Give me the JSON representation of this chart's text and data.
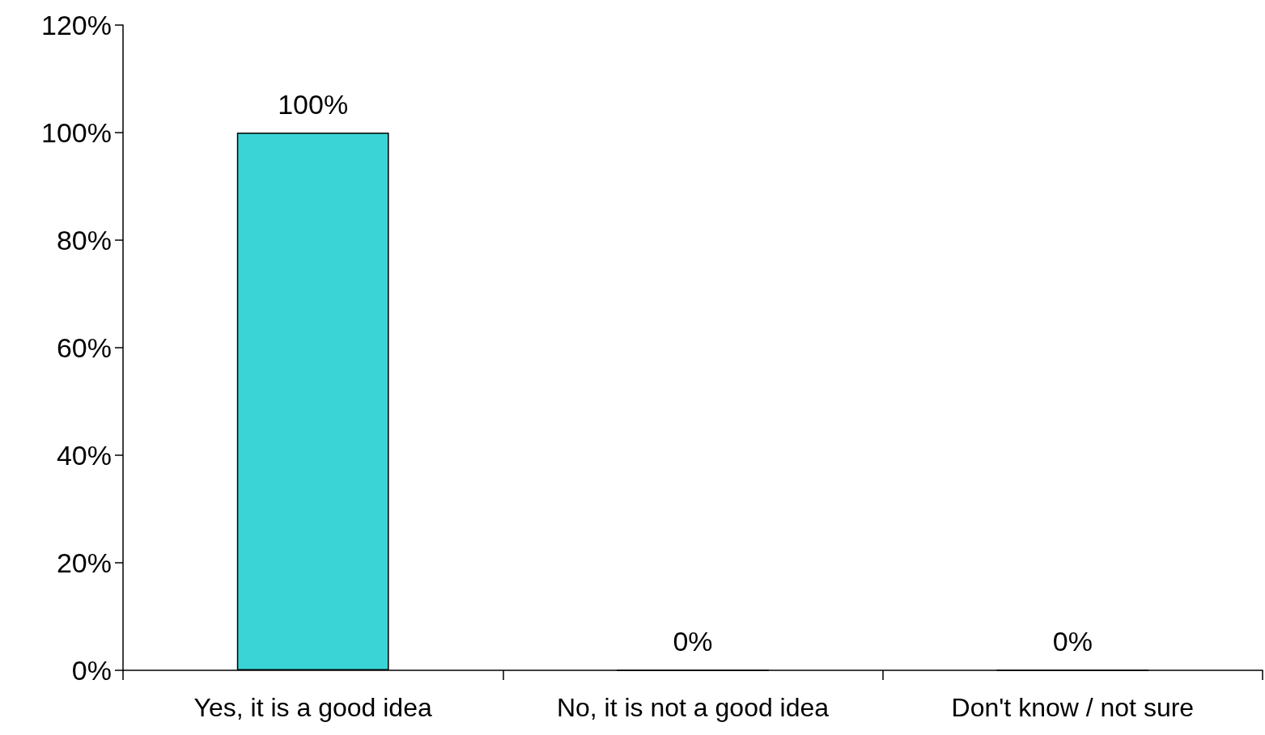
{
  "chart_data": {
    "type": "bar",
    "categories": [
      "Yes, it is a good idea",
      "No, it is not a good idea",
      "Don't know / not sure"
    ],
    "values": [
      100,
      0,
      0
    ],
    "value_labels": [
      "100%",
      "0%",
      "0%"
    ],
    "color": "#3ad4d6",
    "ylim": [
      0,
      120
    ],
    "yticks": [
      {
        "value": 0,
        "label": "0%"
      },
      {
        "value": 20,
        "label": "20%"
      },
      {
        "value": 40,
        "label": "40%"
      },
      {
        "value": 60,
        "label": "60%"
      },
      {
        "value": 80,
        "label": "80%"
      },
      {
        "value": 100,
        "label": "100%"
      },
      {
        "value": 120,
        "label": "120%"
      }
    ],
    "grid": false
  }
}
